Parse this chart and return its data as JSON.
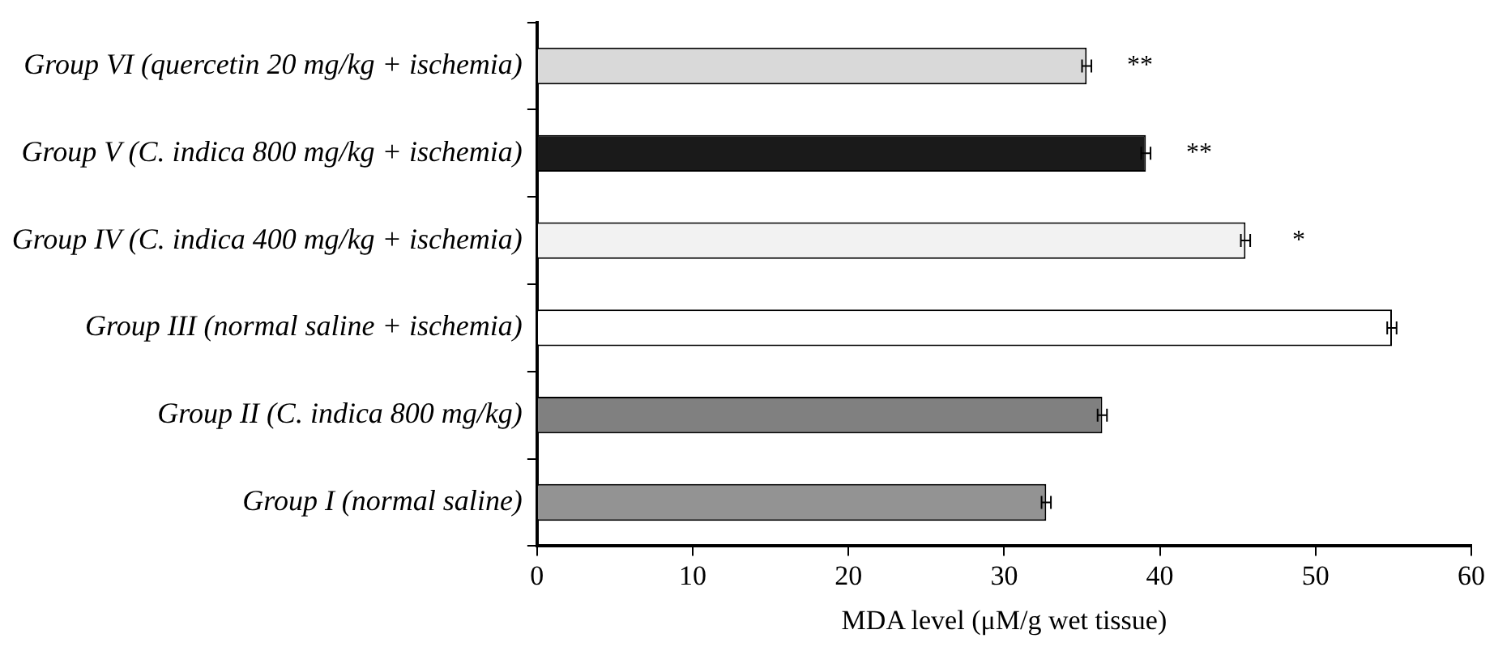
{
  "chart_data": {
    "type": "bar",
    "orientation": "horizontal",
    "xlabel": "MDA level (μM/g wet tissue)",
    "categories": [
      "Group VI (quercetin 20 mg/kg + ischemia)",
      "Group V (C. indica 800 mg/kg + ischemia)",
      "Group IV (C. indica 400 mg/kg + ischemia)",
      "Group III (normal saline + ischemia)",
      "Group II (C. indica 800 mg/kg)",
      "Group I (normal saline)"
    ],
    "values": [
      35.3,
      39.1,
      45.5,
      54.9,
      36.3,
      32.7
    ],
    "errors": [
      0.3,
      0.3,
      0.3,
      0.3,
      0.3,
      0.3
    ],
    "colors": [
      "#d9d9d9",
      "#1a1a1a",
      "#f2f2f2",
      "#ffffff",
      "#808080",
      "#939393"
    ],
    "xlim": [
      0,
      60
    ],
    "xticks": [
      0,
      10,
      20,
      30,
      40,
      50,
      60
    ],
    "grid": false,
    "legend": false,
    "annotations": [
      "**",
      "**",
      "*"
    ]
  }
}
